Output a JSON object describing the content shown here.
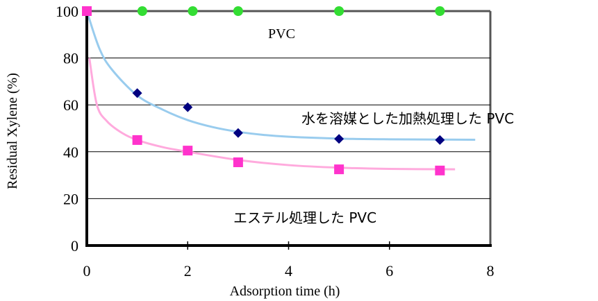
{
  "chart_data": {
    "type": "scatter",
    "xlabel": "Adsorption time (h)",
    "ylabel": "Residual Xylene (%)",
    "xlim": [
      0,
      8
    ],
    "ylim": [
      0,
      100
    ],
    "x_ticks": [
      "0",
      "2",
      "4",
      "6",
      "8"
    ],
    "y_ticks": [
      "0",
      "20",
      "40",
      "60",
      "80",
      "100"
    ],
    "grid": "horizontal",
    "colors": {
      "pvc": "#33dd33",
      "water_heat": "#000080",
      "water_heat_curve": "#99ccee",
      "ester": "#ff33cc",
      "ester_curve": "#ffaadd"
    },
    "annotations": {
      "pvc": "PVC",
      "water_heat": "水を溶媒とした加熱処理した PVC",
      "ester": "エステル処理した PVC"
    },
    "series": [
      {
        "key": "pvc",
        "marker": "circle",
        "x": [
          0,
          1.1,
          2.1,
          3.0,
          5.0,
          7.0
        ],
        "y": [
          100,
          100,
          100,
          100,
          100,
          100
        ]
      },
      {
        "key": "water_heat",
        "marker": "diamond",
        "x": [
          1.0,
          2.0,
          3.0,
          5.0,
          7.0
        ],
        "y": [
          65,
          59,
          48,
          45.5,
          45
        ]
      },
      {
        "key": "ester",
        "marker": "square",
        "x": [
          0,
          1.0,
          2.0,
          3.0,
          5.0,
          7.0
        ],
        "y": [
          100,
          45,
          40.5,
          35.5,
          32.5,
          32
        ]
      }
    ],
    "trendlines": [
      {
        "key": "water_heat_curve",
        "x": [
          0,
          0.25,
          0.5,
          1.0,
          1.5,
          2.0,
          2.5,
          3.0,
          3.5,
          4.0,
          5.0,
          6.0,
          7.0,
          7.7
        ],
        "y": [
          100,
          84,
          75,
          64,
          58,
          53.5,
          50.5,
          48.5,
          47.2,
          46.4,
          45.6,
          45.3,
          45.2,
          45.1
        ]
      },
      {
        "key": "ester_curve",
        "x": [
          0.05,
          0.2,
          0.4,
          0.7,
          1.0,
          1.5,
          2.0,
          3.0,
          4.0,
          5.0,
          6.0,
          7.3
        ],
        "y": [
          80,
          60,
          53,
          48,
          45,
          42,
          40,
          36.5,
          34.3,
          33.2,
          32.7,
          32.5
        ]
      }
    ]
  }
}
